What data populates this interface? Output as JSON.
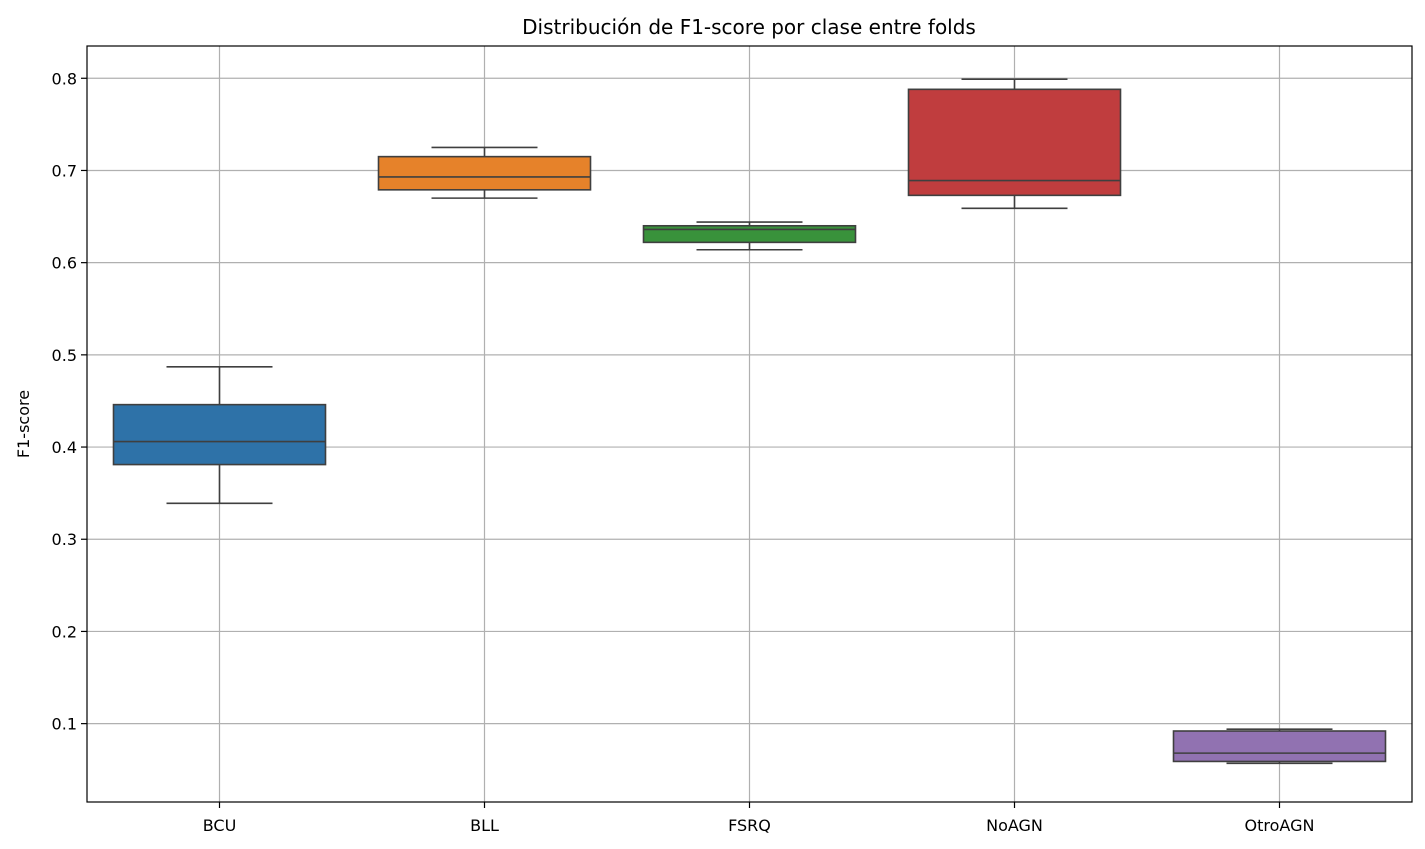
{
  "chart_data": {
    "type": "box",
    "title": "Distribución de F1-score por clase entre folds",
    "xlabel": "",
    "ylabel": "F1-score",
    "ylim": [
      0.015,
      0.835
    ],
    "yticks": [
      0.1,
      0.2,
      0.3,
      0.4,
      0.5,
      0.6,
      0.7,
      0.8
    ],
    "ytick_labels": [
      "0.1",
      "0.2",
      "0.3",
      "0.4",
      "0.5",
      "0.6",
      "0.7",
      "0.8"
    ],
    "grid": true,
    "categories": [
      "BCU",
      "BLL",
      "FSRQ",
      "NoAGN",
      "OtroAGN"
    ],
    "boxes": [
      {
        "category": "BCU",
        "whisker_low": 0.339,
        "q1": 0.381,
        "median": 0.406,
        "q3": 0.446,
        "whisker_high": 0.487,
        "color": "#2e72a8"
      },
      {
        "category": "BLL",
        "whisker_low": 0.67,
        "q1": 0.679,
        "median": 0.693,
        "q3": 0.715,
        "whisker_high": 0.725,
        "color": "#e6822a"
      },
      {
        "category": "FSRQ",
        "whisker_low": 0.614,
        "q1": 0.622,
        "median": 0.636,
        "q3": 0.64,
        "whisker_high": 0.644,
        "color": "#39923b"
      },
      {
        "category": "NoAGN",
        "whisker_low": 0.659,
        "q1": 0.673,
        "median": 0.689,
        "q3": 0.788,
        "whisker_high": 0.799,
        "color": "#c03d3e"
      },
      {
        "category": "OtroAGN",
        "whisker_low": 0.057,
        "q1": 0.059,
        "median": 0.068,
        "q3": 0.092,
        "whisker_high": 0.094,
        "color": "#9172b1"
      }
    ]
  }
}
